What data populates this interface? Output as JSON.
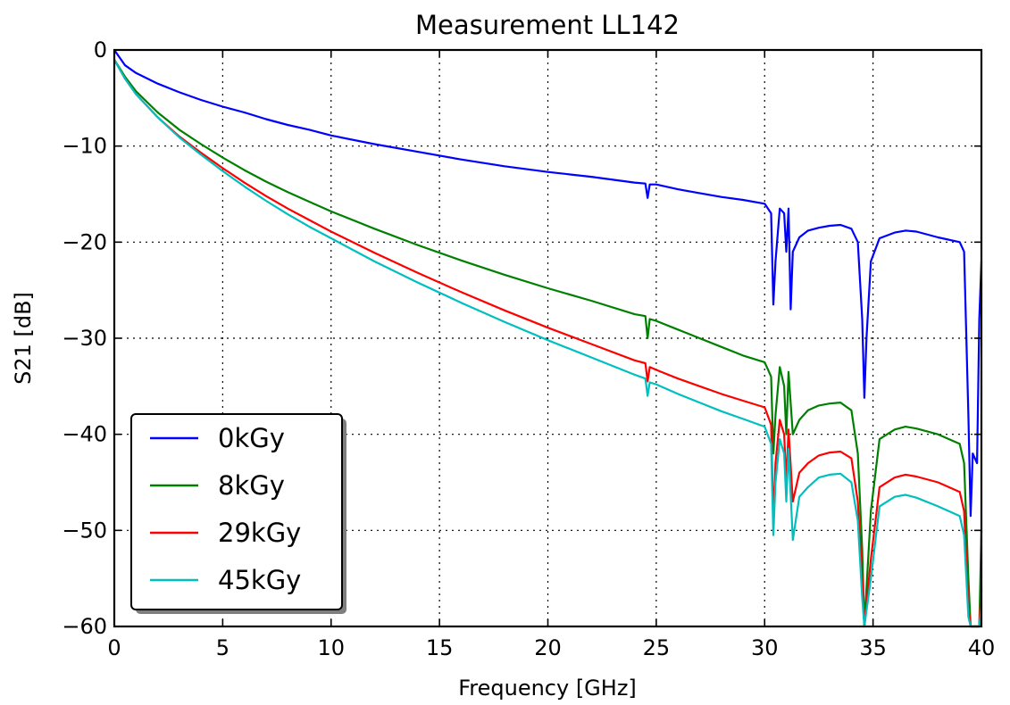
{
  "chart_data": {
    "type": "line",
    "title": "Measurement LL142",
    "xlabel": "Frequency [GHz]",
    "ylabel": "S21 [dB]",
    "xlim": [
      0,
      40
    ],
    "ylim": [
      -60,
      0
    ],
    "xticks": [
      0,
      5,
      10,
      15,
      20,
      25,
      30,
      35,
      40
    ],
    "xtick_labels": [
      "0",
      "5",
      "10",
      "15",
      "20",
      "25",
      "30",
      "35",
      "40"
    ],
    "yticks": [
      0,
      -10,
      -20,
      -30,
      -40,
      -50,
      -60
    ],
    "ytick_labels": [
      "0",
      "−10",
      "−20",
      "−30",
      "−40",
      "−50",
      "−60"
    ],
    "grid": true,
    "legend_position": "lower-left",
    "series": [
      {
        "name": "0kGy",
        "color": "#0000ff",
        "points": [
          [
            0,
            0
          ],
          [
            0.5,
            -1.6
          ],
          [
            1,
            -2.4
          ],
          [
            2,
            -3.5
          ],
          [
            3,
            -4.4
          ],
          [
            4,
            -5.2
          ],
          [
            5,
            -5.9
          ],
          [
            6,
            -6.5
          ],
          [
            7,
            -7.2
          ],
          [
            8,
            -7.8
          ],
          [
            9,
            -8.3
          ],
          [
            10,
            -8.9
          ],
          [
            12,
            -9.8
          ],
          [
            14,
            -10.6
          ],
          [
            16,
            -11.4
          ],
          [
            18,
            -12.1
          ],
          [
            20,
            -12.7
          ],
          [
            22,
            -13.2
          ],
          [
            24,
            -13.8
          ],
          [
            24.5,
            -13.9
          ],
          [
            24.6,
            -15.4
          ],
          [
            24.7,
            -14
          ],
          [
            25,
            -14
          ],
          [
            26,
            -14.5
          ],
          [
            27,
            -14.9
          ],
          [
            28,
            -15.3
          ],
          [
            29,
            -15.6
          ],
          [
            30,
            -16
          ],
          [
            30.3,
            -17
          ],
          [
            30.4,
            -26.5
          ],
          [
            30.5,
            -22
          ],
          [
            30.7,
            -16.5
          ],
          [
            30.9,
            -17
          ],
          [
            31,
            -21
          ],
          [
            31.1,
            -16.5
          ],
          [
            31.2,
            -27
          ],
          [
            31.3,
            -21
          ],
          [
            31.6,
            -19.5
          ],
          [
            32,
            -18.8
          ],
          [
            32.5,
            -18.5
          ],
          [
            33,
            -18.3
          ],
          [
            33.5,
            -18.2
          ],
          [
            34,
            -18.6
          ],
          [
            34.3,
            -20
          ],
          [
            34.5,
            -28
          ],
          [
            34.6,
            -36.2
          ],
          [
            34.7,
            -30
          ],
          [
            34.9,
            -22
          ],
          [
            35.3,
            -19.6
          ],
          [
            36,
            -19
          ],
          [
            36.5,
            -18.8
          ],
          [
            37,
            -18.9
          ],
          [
            38,
            -19.5
          ],
          [
            39,
            -20
          ],
          [
            39.2,
            -21
          ],
          [
            39.4,
            -38
          ],
          [
            39.5,
            -48.5
          ],
          [
            39.6,
            -42
          ],
          [
            39.8,
            -43
          ],
          [
            39.9,
            -28
          ],
          [
            40,
            -22
          ]
        ]
      },
      {
        "name": "8kGy",
        "color": "#008000",
        "points": [
          [
            0,
            -1
          ],
          [
            0.5,
            -2.8
          ],
          [
            1,
            -4.3
          ],
          [
            2,
            -6.5
          ],
          [
            3,
            -8.3
          ],
          [
            4,
            -9.8
          ],
          [
            5,
            -11.2
          ],
          [
            6,
            -12.5
          ],
          [
            7,
            -13.7
          ],
          [
            8,
            -14.8
          ],
          [
            9,
            -15.8
          ],
          [
            10,
            -16.8
          ],
          [
            12,
            -18.6
          ],
          [
            14,
            -20.3
          ],
          [
            16,
            -21.9
          ],
          [
            18,
            -23.4
          ],
          [
            20,
            -24.8
          ],
          [
            22,
            -26.1
          ],
          [
            24,
            -27.5
          ],
          [
            24.5,
            -27.7
          ],
          [
            24.6,
            -30
          ],
          [
            24.7,
            -28
          ],
          [
            25,
            -28.2
          ],
          [
            26,
            -29.1
          ],
          [
            27,
            -30
          ],
          [
            28,
            -30.9
          ],
          [
            29,
            -31.8
          ],
          [
            30,
            -32.5
          ],
          [
            30.3,
            -34
          ],
          [
            30.4,
            -42
          ],
          [
            30.5,
            -38
          ],
          [
            30.7,
            -33
          ],
          [
            30.9,
            -35
          ],
          [
            31,
            -40
          ],
          [
            31.1,
            -33.5
          ],
          [
            31.3,
            -40
          ],
          [
            31.6,
            -38.5
          ],
          [
            32,
            -37.5
          ],
          [
            32.5,
            -37
          ],
          [
            33,
            -36.8
          ],
          [
            33.5,
            -36.7
          ],
          [
            34,
            -37.5
          ],
          [
            34.3,
            -42
          ],
          [
            34.5,
            -52
          ],
          [
            34.6,
            -60
          ],
          [
            34.9,
            -48
          ],
          [
            35.3,
            -40.5
          ],
          [
            36,
            -39.5
          ],
          [
            36.5,
            -39.2
          ],
          [
            37,
            -39.4
          ],
          [
            38,
            -40
          ],
          [
            39,
            -41
          ],
          [
            39.2,
            -43
          ],
          [
            39.4,
            -55
          ],
          [
            39.5,
            -60
          ],
          [
            39.9,
            -60
          ],
          [
            40,
            -50
          ]
        ]
      },
      {
        "name": "29kGy",
        "color": "#ff0000",
        "points": [
          [
            0,
            -1
          ],
          [
            0.5,
            -3
          ],
          [
            1,
            -4.6
          ],
          [
            2,
            -7
          ],
          [
            3,
            -9
          ],
          [
            4,
            -10.7
          ],
          [
            5,
            -12.3
          ],
          [
            6,
            -13.8
          ],
          [
            7,
            -15.2
          ],
          [
            8,
            -16.5
          ],
          [
            9,
            -17.7
          ],
          [
            10,
            -18.9
          ],
          [
            12,
            -21.1
          ],
          [
            14,
            -23.2
          ],
          [
            16,
            -25.2
          ],
          [
            18,
            -27.1
          ],
          [
            20,
            -28.9
          ],
          [
            22,
            -30.6
          ],
          [
            24,
            -32.3
          ],
          [
            24.5,
            -32.6
          ],
          [
            24.6,
            -34.5
          ],
          [
            24.7,
            -33
          ],
          [
            25,
            -33.3
          ],
          [
            26,
            -34.2
          ],
          [
            27,
            -35
          ],
          [
            28,
            -35.8
          ],
          [
            29,
            -36.5
          ],
          [
            30,
            -37.2
          ],
          [
            30.3,
            -39
          ],
          [
            30.4,
            -49
          ],
          [
            30.5,
            -43
          ],
          [
            30.7,
            -38.5
          ],
          [
            30.9,
            -40
          ],
          [
            31,
            -45
          ],
          [
            31.1,
            -39.5
          ],
          [
            31.3,
            -47
          ],
          [
            31.6,
            -44
          ],
          [
            32,
            -43
          ],
          [
            32.5,
            -42.2
          ],
          [
            33,
            -41.9
          ],
          [
            33.5,
            -41.8
          ],
          [
            34,
            -42.5
          ],
          [
            34.3,
            -47
          ],
          [
            34.5,
            -55
          ],
          [
            34.6,
            -60
          ],
          [
            34.9,
            -53
          ],
          [
            35.3,
            -45.5
          ],
          [
            36,
            -44.5
          ],
          [
            36.5,
            -44.2
          ],
          [
            37,
            -44.4
          ],
          [
            38,
            -45
          ],
          [
            39,
            -46
          ],
          [
            39.2,
            -48
          ],
          [
            39.4,
            -58
          ],
          [
            39.5,
            -60
          ],
          [
            39.9,
            -60
          ],
          [
            40,
            -56
          ]
        ]
      },
      {
        "name": "45kGy",
        "color": "#00bfbf",
        "points": [
          [
            0,
            -1
          ],
          [
            0.5,
            -3
          ],
          [
            1,
            -4.6
          ],
          [
            2,
            -7
          ],
          [
            3,
            -9.1
          ],
          [
            4,
            -10.9
          ],
          [
            5,
            -12.6
          ],
          [
            6,
            -14.2
          ],
          [
            7,
            -15.7
          ],
          [
            8,
            -17.1
          ],
          [
            9,
            -18.4
          ],
          [
            10,
            -19.6
          ],
          [
            12,
            -22
          ],
          [
            14,
            -24.2
          ],
          [
            16,
            -26.3
          ],
          [
            18,
            -28.3
          ],
          [
            20,
            -30.2
          ],
          [
            22,
            -32
          ],
          [
            24,
            -33.8
          ],
          [
            24.5,
            -34.2
          ],
          [
            24.6,
            -36
          ],
          [
            24.7,
            -34.6
          ],
          [
            25,
            -34.8
          ],
          [
            26,
            -35.8
          ],
          [
            27,
            -36.7
          ],
          [
            28,
            -37.6
          ],
          [
            29,
            -38.4
          ],
          [
            30,
            -39.2
          ],
          [
            30.3,
            -41
          ],
          [
            30.4,
            -50.5
          ],
          [
            30.5,
            -45
          ],
          [
            30.7,
            -40.5
          ],
          [
            30.9,
            -42
          ],
          [
            31,
            -47
          ],
          [
            31.1,
            -41.5
          ],
          [
            31.3,
            -51
          ],
          [
            31.6,
            -46.5
          ],
          [
            32,
            -45.5
          ],
          [
            32.5,
            -44.5
          ],
          [
            33,
            -44.2
          ],
          [
            33.5,
            -44.1
          ],
          [
            34,
            -45
          ],
          [
            34.3,
            -49
          ],
          [
            34.5,
            -57
          ],
          [
            34.6,
            -60
          ],
          [
            34.9,
            -55
          ],
          [
            35.3,
            -47.5
          ],
          [
            36,
            -46.5
          ],
          [
            36.5,
            -46.3
          ],
          [
            37,
            -46.6
          ],
          [
            38,
            -47.5
          ],
          [
            39,
            -48.5
          ],
          [
            39.2,
            -50.5
          ],
          [
            39.4,
            -59
          ],
          [
            39.5,
            -60
          ],
          [
            39.9,
            -60
          ],
          [
            40,
            -58
          ]
        ]
      }
    ]
  }
}
